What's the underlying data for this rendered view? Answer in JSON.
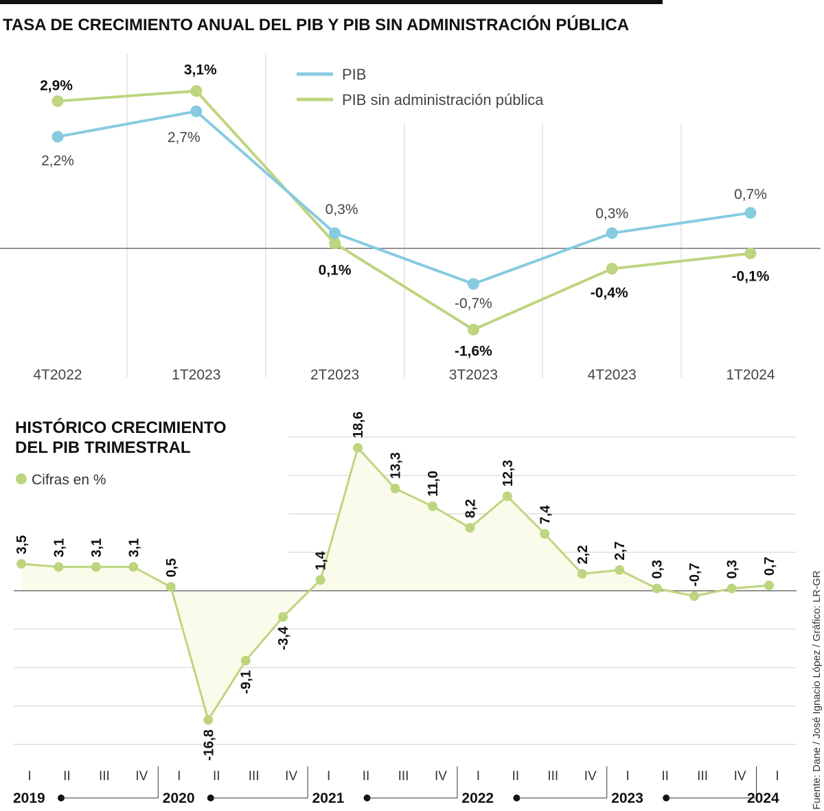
{
  "colors": {
    "pib": "#86cbe0",
    "pib_sin_admin": "#bdd57f",
    "fill": "#fafbea",
    "grid": "#cfcfcf",
    "axis": "#555555"
  },
  "source": "Fuente: Dane / José Ignacio López / Gráfico: LR-GR",
  "chart_data": [
    {
      "type": "line",
      "title": "TASA DE CRECIMIENTO ANUAL DEL PIB  Y PIB SIN ADMINISTRACIÓN PÚBLICA",
      "categories": [
        "4T2022",
        "1T2023",
        "2T2023",
        "3T2023",
        "4T2023",
        "1T2024"
      ],
      "legend_placement": "top-center",
      "series": [
        {
          "name": "PIB",
          "values": [
            2.2,
            2.7,
            0.3,
            -0.7,
            0.3,
            0.7
          ],
          "labels": [
            "2,2%",
            "2,7%",
            "0,3%",
            "-0,7%",
            "0,3%",
            "0,7%"
          ]
        },
        {
          "name": "PIB sin administración pública",
          "values": [
            2.9,
            3.1,
            0.1,
            -1.6,
            -0.4,
            -0.1
          ],
          "labels": [
            "2,9%",
            "3,1%",
            "0,1%",
            "-1,6%",
            "-0,4%",
            "-0,1%"
          ]
        }
      ]
    },
    {
      "type": "area",
      "title": [
        "HISTÓRICO CRECIMIENTO",
        "DEL PIB TRIMESTRAL"
      ],
      "legend": "Cifras en %",
      "quarters": [
        "I",
        "II",
        "III",
        "IV",
        "I",
        "II",
        "III",
        "IV",
        "I",
        "II",
        "III",
        "IV",
        "I",
        "II",
        "III",
        "IV",
        "I",
        "II",
        "III",
        "IV",
        "I"
      ],
      "years": [
        "2019",
        "2020",
        "2021",
        "2022",
        "2023",
        "2024"
      ],
      "values": [
        3.5,
        3.1,
        3.1,
        3.1,
        0.5,
        -16.8,
        -9.1,
        -3.4,
        1.4,
        18.6,
        13.3,
        11.0,
        8.2,
        12.3,
        7.4,
        2.2,
        2.7,
        0.3,
        -0.7,
        0.3,
        0.7
      ],
      "labels": [
        "3,5",
        "3,1",
        "3,1",
        "3,1",
        "0,5",
        "-16,8",
        "-9,1",
        "-3,4",
        "1,4",
        "18,6",
        "13,3",
        "11,0",
        "8,2",
        "12,3",
        "7,4",
        "2,2",
        "2,7",
        "0,3",
        "-0,7",
        "0,3",
        "0,7"
      ],
      "ylim": [
        -20,
        20
      ],
      "grid": true
    }
  ]
}
